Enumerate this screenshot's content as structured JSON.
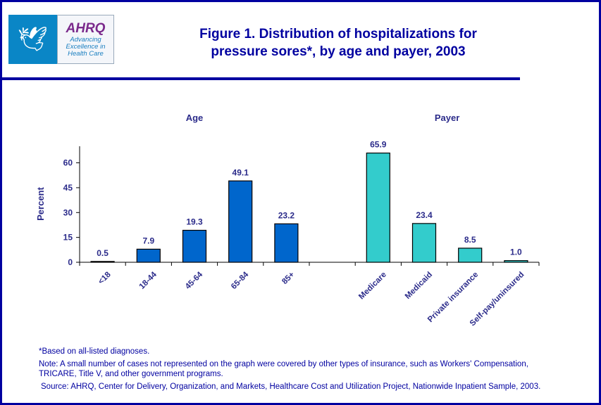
{
  "logo": {
    "agency": "AHRQ",
    "tagline": "Advancing Excellence in Health Care"
  },
  "title_line1": "Figure 1. Distribution of hospitalizations for",
  "title_line2": "pressure sores*, by age and payer, 2003",
  "chart_data": {
    "type": "bar",
    "ylabel": "Percent",
    "ylim": [
      0,
      70
    ],
    "yticks": [
      0,
      15,
      30,
      45,
      60
    ],
    "groups": [
      {
        "name": "Age",
        "color": "#0066cc",
        "categories": [
          "<18",
          "18-44",
          "45-64",
          "65-84",
          "85+"
        ],
        "values": [
          0.5,
          7.9,
          19.3,
          49.1,
          23.2
        ],
        "labels": [
          "0.5",
          "7.9",
          "19.3",
          "49.1",
          "23.2"
        ]
      },
      {
        "name": "Payer",
        "color": "#33cccc",
        "categories": [
          "Medicare",
          "Medicaid",
          "Private insurance",
          "Self-pay/uninsured"
        ],
        "values": [
          65.9,
          23.4,
          8.5,
          1.0
        ],
        "labels": [
          "65.9",
          "23.4",
          "8.5",
          "1.0"
        ]
      }
    ]
  },
  "notes": {
    "footnote": "*Based on all-listed diagnoses.",
    "note1": "Note: A small number of cases not represented on the graph were covered by other types of insurance, such as Workers' Compensation,",
    "note2": "TRICARE, Title V, and other government programs.",
    "source": "Source: AHRQ, Center for Delivery, Organization, and Markets, Healthcare Cost and Utilization Project, Nationwide Inpatient Sample, 2003."
  }
}
